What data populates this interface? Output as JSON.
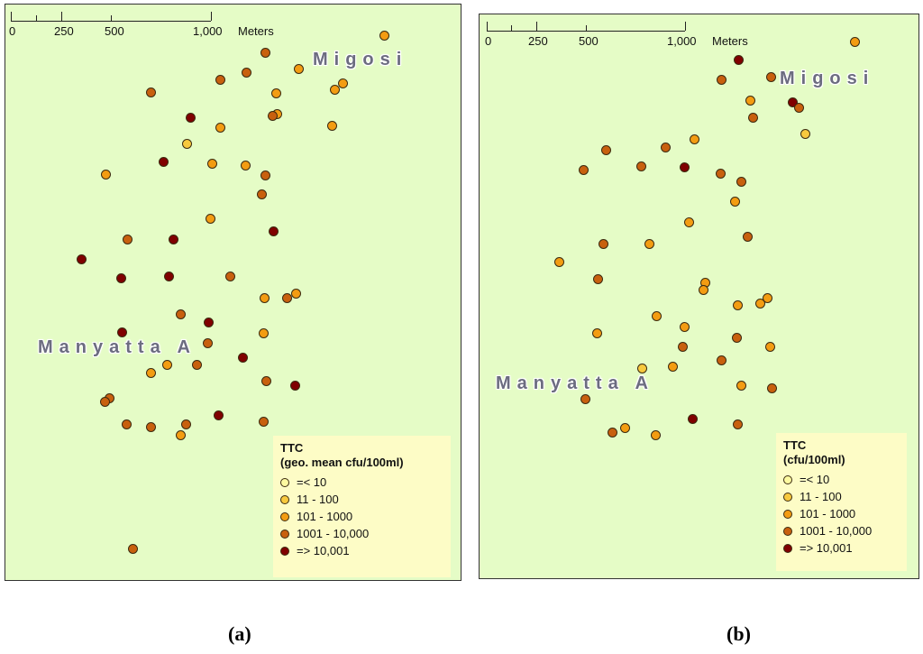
{
  "classes": [
    {
      "label": "=< 10",
      "color": "#fdfaa0"
    },
    {
      "label": "11 - 100",
      "color": "#f7c93e"
    },
    {
      "label": "101 - 1000",
      "color": "#f39c12"
    },
    {
      "label": "1001 - 10,000",
      "color": "#c8600e"
    },
    {
      "label": "=> 10,001",
      "color": "#800000"
    }
  ],
  "scale": {
    "labels": [
      "0",
      "250",
      "500",
      "1,000"
    ],
    "unit": "Meters"
  },
  "panel_a": {
    "caption_letter": "a",
    "legend_title": "TTC",
    "legend_subtitle": "(geo. mean cfu/100ml)",
    "place_1": "Migosi",
    "place_2": "Manyatta A"
  },
  "panel_b": {
    "caption_letter": "b",
    "legend_title": "TTC",
    "legend_subtitle": "(cfu/100ml)",
    "place_1": "Migosi",
    "place_2": "Manyatta A"
  }
}
